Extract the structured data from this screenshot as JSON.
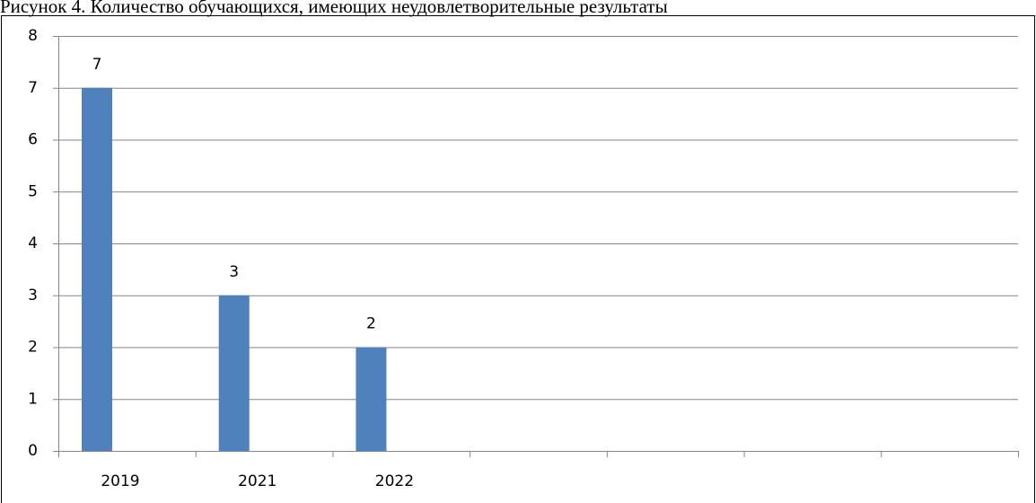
{
  "chart_data": {
    "type": "bar",
    "title": "Рисунок 4. Количество обучающихся, имеющих неудовлетворительные результаты",
    "categories": [
      "2019",
      "2021",
      "2022",
      null,
      null,
      null,
      null
    ],
    "values": [
      7,
      3,
      2,
      null,
      null,
      null,
      null
    ],
    "color": "#4f81bd",
    "ylim": [
      0,
      8
    ],
    "yticks": [
      0,
      1,
      2,
      3,
      4,
      5,
      6,
      7,
      8
    ],
    "grid": true
  }
}
